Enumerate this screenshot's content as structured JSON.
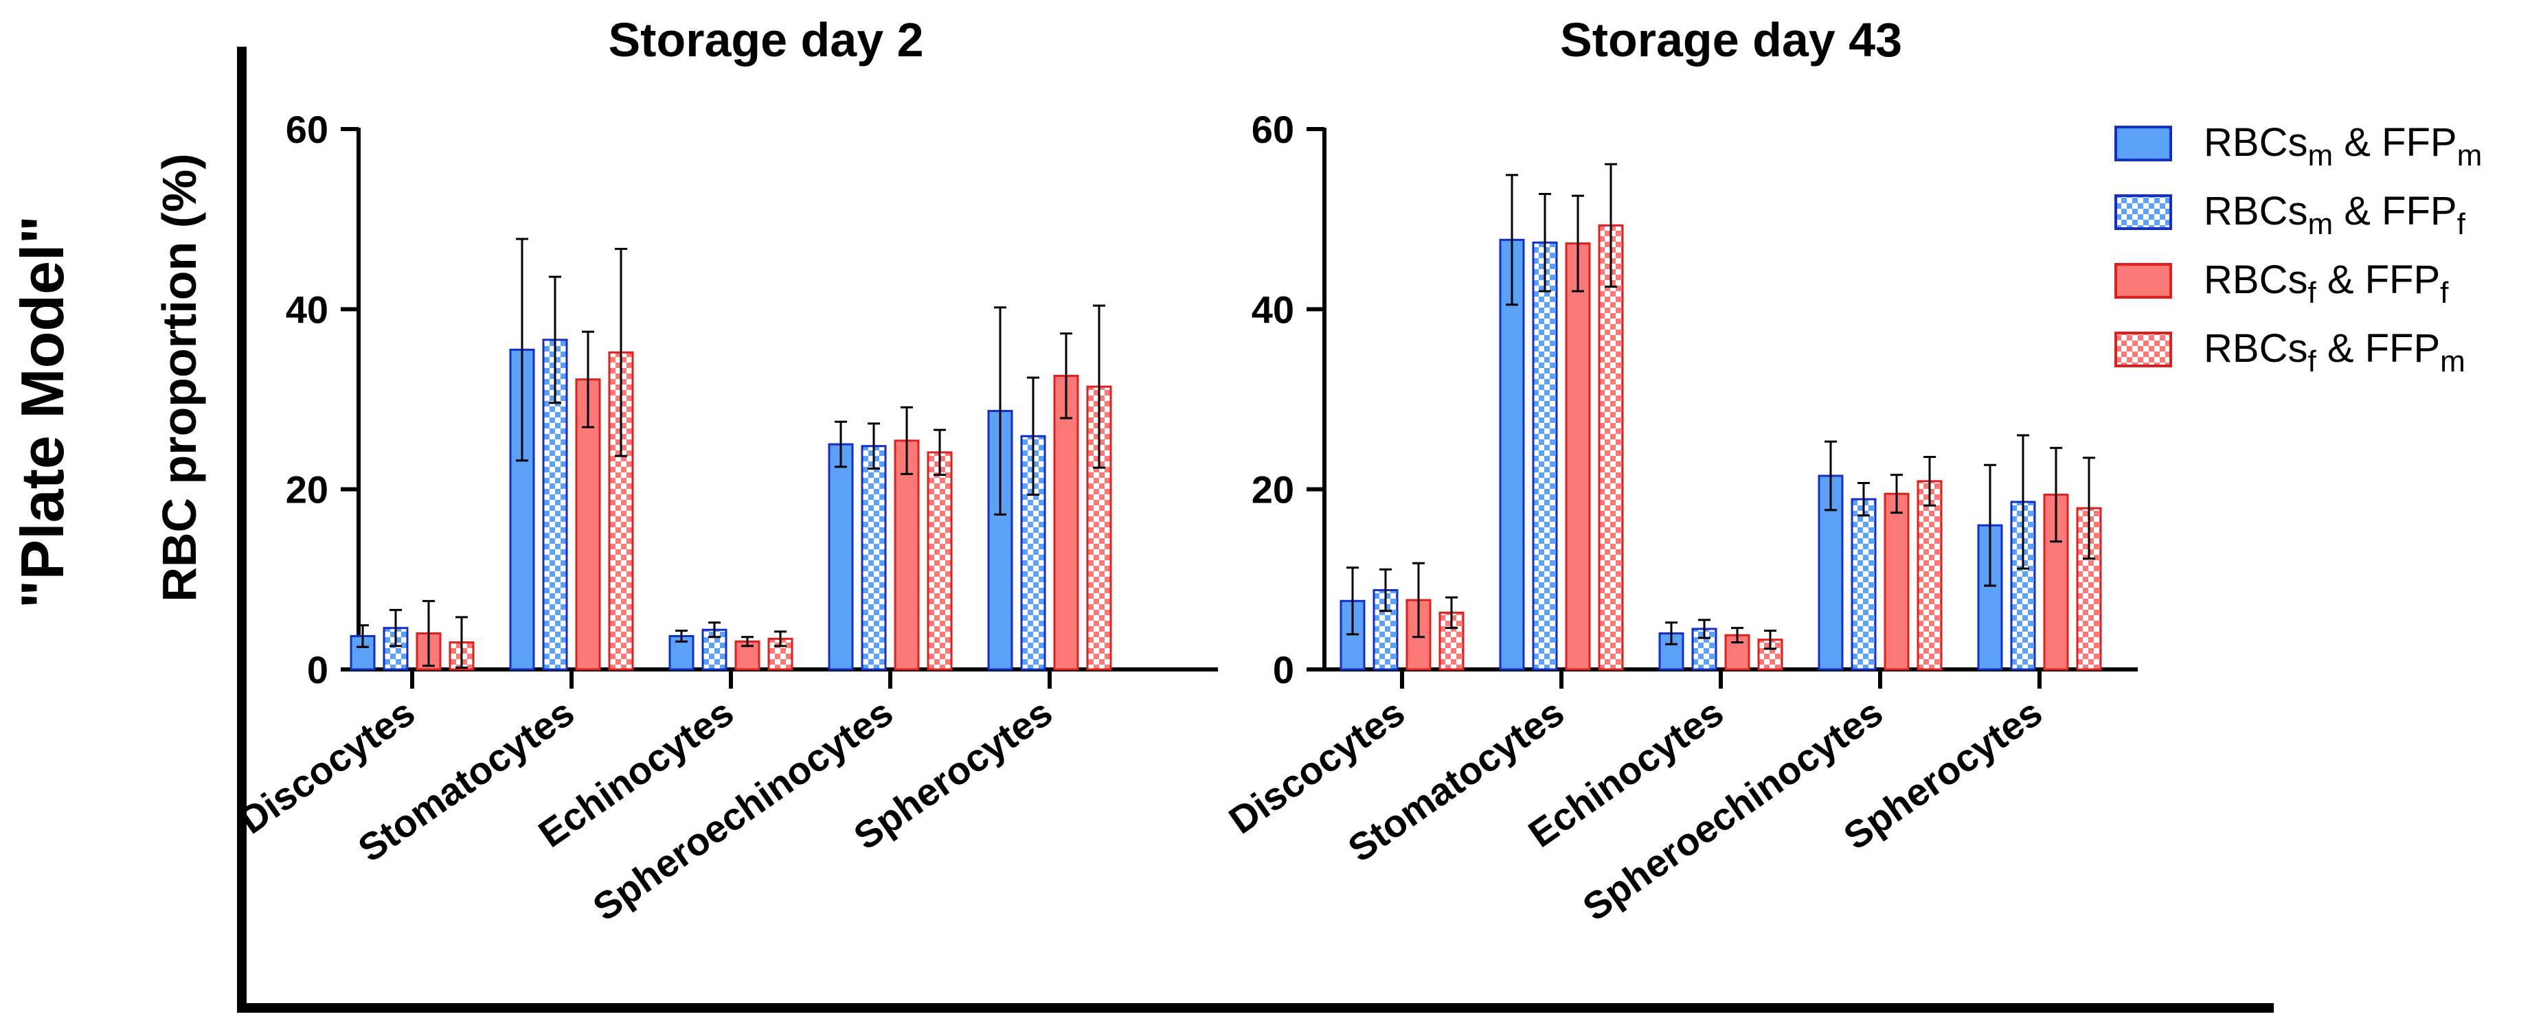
{
  "figure": {
    "side_label": "\"Plate Model\"",
    "y_axis_label": "RBC proportion (%)"
  },
  "colors": {
    "blue_fill": "#5ba1f7",
    "blue_edge": "#1230c8",
    "blue_check_light": "#ffffff",
    "red_fill": "#fb7a78",
    "red_edge": "#e0201e",
    "red_check_light": "#ffffff",
    "error_bar": "#000000",
    "axis": "#000000"
  },
  "legend": {
    "entries": [
      {
        "base": "RBCs",
        "sub1": "m",
        "mid": " & FFP",
        "sub2": "m",
        "color": "blue",
        "pattern": "solid"
      },
      {
        "base": "RBCs",
        "sub1": "m",
        "mid": " & FFP",
        "sub2": "f",
        "color": "blue",
        "pattern": "checker"
      },
      {
        "base": "RBCs",
        "sub1": "f",
        "mid": " & FFP",
        "sub2": "f",
        "color": "red",
        "pattern": "solid"
      },
      {
        "base": "RBCs",
        "sub1": "f",
        "mid": " & FFP",
        "sub2": "m",
        "color": "red",
        "pattern": "checker"
      }
    ]
  },
  "chart_data": [
    {
      "type": "bar",
      "title": "Storage day 2",
      "ylabel": "RBC proportion (%)",
      "ylim": [
        0,
        60
      ],
      "yticks": [
        0,
        20,
        40,
        60
      ],
      "categories": [
        "Discocytes",
        "Stomatocytes",
        "Echinocytes",
        "Spheroechinocytes",
        "Spherocytes"
      ],
      "series": [
        {
          "name": "RBCsm & FFPm",
          "values": [
            3.7,
            35.5,
            3.7,
            25.0,
            28.7
          ],
          "errors": [
            1.2,
            12.3,
            0.6,
            2.5,
            11.5
          ]
        },
        {
          "name": "RBCsm & FFPf",
          "values": [
            4.6,
            36.6,
            4.4,
            24.8,
            25.9
          ],
          "errors": [
            2.0,
            7.0,
            0.8,
            2.5,
            6.5
          ]
        },
        {
          "name": "RBCsf & FFPf",
          "values": [
            4.0,
            32.2,
            3.1,
            25.4,
            32.6
          ],
          "errors": [
            3.6,
            5.3,
            0.5,
            3.7,
            4.7
          ]
        },
        {
          "name": "RBCsf & FFPm",
          "values": [
            3.0,
            35.2,
            3.4,
            24.1,
            31.4
          ],
          "errors": [
            2.8,
            11.5,
            0.8,
            2.5,
            9.0
          ]
        }
      ]
    },
    {
      "type": "bar",
      "title": "Storage day 43",
      "ylabel": "RBC proportion (%)",
      "ylim": [
        0,
        60
      ],
      "yticks": [
        0,
        20,
        40,
        60
      ],
      "categories": [
        "Discocytes",
        "Stomatocytes",
        "Echinocytes",
        "Spheroechinocytes",
        "Spherocytes"
      ],
      "series": [
        {
          "name": "RBCsm & FFPm",
          "values": [
            7.6,
            47.7,
            4.0,
            21.5,
            16.0
          ],
          "errors": [
            3.7,
            7.2,
            1.2,
            3.8,
            6.7
          ]
        },
        {
          "name": "RBCsm & FFPf",
          "values": [
            8.8,
            47.4,
            4.5,
            18.9,
            18.6
          ],
          "errors": [
            2.3,
            5.4,
            1.0,
            1.8,
            7.4
          ]
        },
        {
          "name": "RBCsf & FFPf",
          "values": [
            7.7,
            47.3,
            3.8,
            19.5,
            19.4
          ],
          "errors": [
            4.1,
            5.3,
            0.8,
            2.1,
            5.2
          ]
        },
        {
          "name": "RBCsf & FFPm",
          "values": [
            6.3,
            49.3,
            3.3,
            20.9,
            17.9
          ],
          "errors": [
            1.7,
            6.8,
            1.0,
            2.7,
            5.6
          ]
        }
      ]
    }
  ]
}
